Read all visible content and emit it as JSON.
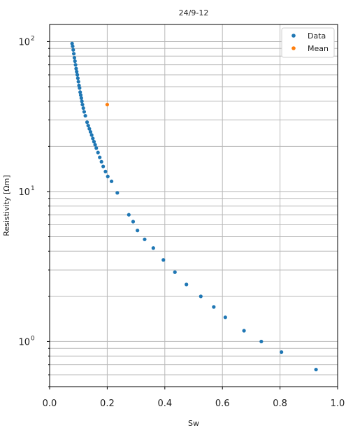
{
  "chart_data": {
    "type": "scatter",
    "title": "24/9-12",
    "xlabel": "Sw",
    "ylabel": "Resistivity [Ωm]",
    "xlim": [
      0.0,
      1.0
    ],
    "ylim": [
      0.5,
      130
    ],
    "yscale": "log",
    "grid": true,
    "legend_position": "top-right",
    "x_ticks": [
      "0.0",
      "0.2",
      "0.4",
      "0.6",
      "0.8",
      "1.0"
    ],
    "y_ticks": [
      {
        "base": "10",
        "exp": "0",
        "value": 1
      },
      {
        "base": "10",
        "exp": "1",
        "value": 10
      },
      {
        "base": "10",
        "exp": "2",
        "value": 100
      }
    ],
    "series": [
      {
        "name": "Data",
        "color": "#1f77b4",
        "x": [
          0.078,
          0.08,
          0.082,
          0.084,
          0.086,
          0.088,
          0.09,
          0.092,
          0.094,
          0.096,
          0.098,
          0.1,
          0.102,
          0.104,
          0.106,
          0.108,
          0.11,
          0.112,
          0.114,
          0.117,
          0.12,
          0.124,
          0.13,
          0.134,
          0.138,
          0.142,
          0.146,
          0.15,
          0.154,
          0.158,
          0.162,
          0.168,
          0.174,
          0.18,
          0.186,
          0.194,
          0.202,
          0.215,
          0.235,
          0.275,
          0.29,
          0.305,
          0.33,
          0.36,
          0.395,
          0.435,
          0.475,
          0.525,
          0.57,
          0.61,
          0.675,
          0.735,
          0.805,
          0.925
        ],
        "y": [
          97,
          93,
          88,
          83,
          78,
          74,
          70,
          66,
          63,
          60,
          57,
          54,
          51,
          49,
          46,
          44,
          42,
          40,
          38,
          36,
          34,
          32,
          29,
          27.5,
          26.2,
          25,
          23.8,
          22.6,
          21.5,
          20.5,
          19.5,
          18.2,
          16.9,
          15.8,
          14.7,
          13.6,
          12.6,
          11.7,
          9.8,
          7.0,
          6.3,
          5.5,
          4.8,
          4.2,
          3.5,
          2.9,
          2.4,
          2.0,
          1.7,
          1.45,
          1.18,
          1.0,
          0.85,
          0.65
        ]
      },
      {
        "name": "Mean",
        "color": "#ff7f0e",
        "x": [
          0.2
        ],
        "y": [
          38
        ]
      }
    ]
  }
}
